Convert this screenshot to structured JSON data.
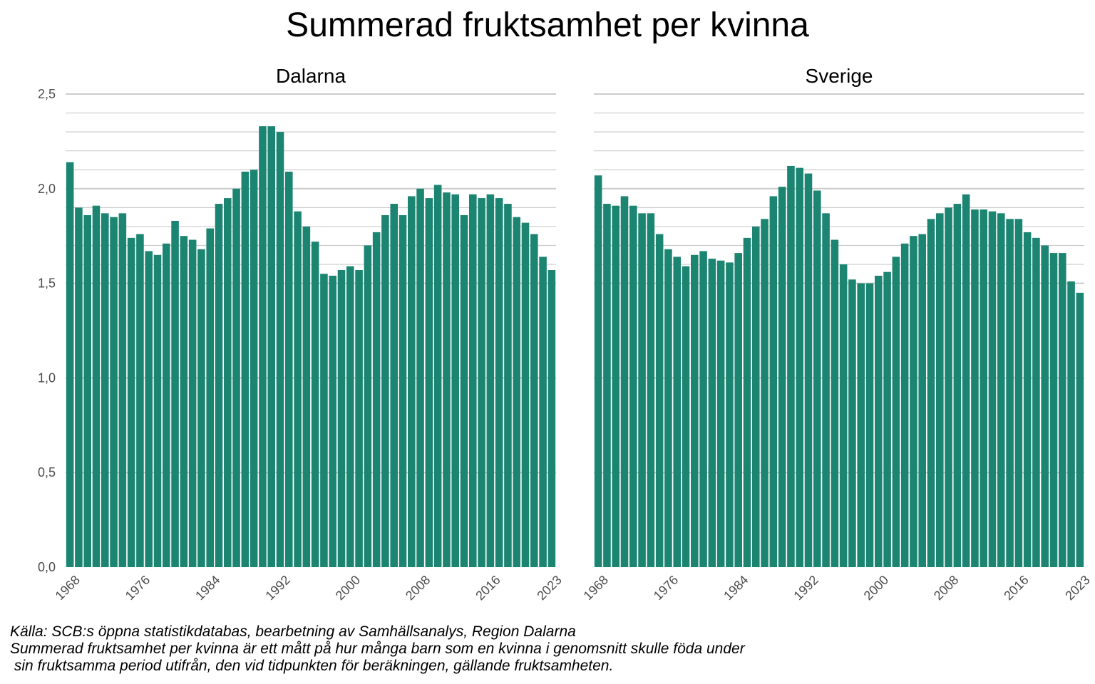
{
  "chart_data": {
    "type": "bar",
    "title": "Summerad fruktsamhet per kvinna",
    "ylim": [
      0,
      2.5
    ],
    "y_ticks": [
      "0,0",
      "0,5",
      "1,0",
      "1,5",
      "2,0",
      "2,5"
    ],
    "x_tick_labels": [
      "1968",
      "1976",
      "1984",
      "1992",
      "2000",
      "2008",
      "2016",
      "2023"
    ],
    "grid": true,
    "bar_color": "#1b8572",
    "years": [
      1968,
      1969,
      1970,
      1971,
      1972,
      1973,
      1974,
      1975,
      1976,
      1977,
      1978,
      1979,
      1980,
      1981,
      1982,
      1983,
      1984,
      1985,
      1986,
      1987,
      1988,
      1989,
      1990,
      1991,
      1992,
      1993,
      1994,
      1995,
      1996,
      1997,
      1998,
      1999,
      2000,
      2001,
      2002,
      2003,
      2004,
      2005,
      2006,
      2007,
      2008,
      2009,
      2010,
      2011,
      2012,
      2013,
      2014,
      2015,
      2016,
      2017,
      2018,
      2019,
      2020,
      2021,
      2022,
      2023
    ],
    "panels": [
      {
        "name": "Dalarna",
        "values": [
          2.14,
          1.9,
          1.86,
          1.91,
          1.87,
          1.85,
          1.87,
          1.74,
          1.76,
          1.67,
          1.65,
          1.71,
          1.83,
          1.75,
          1.73,
          1.68,
          1.79,
          1.92,
          1.95,
          2.0,
          2.09,
          2.1,
          2.33,
          2.33,
          2.3,
          2.09,
          1.88,
          1.8,
          1.72,
          1.55,
          1.54,
          1.57,
          1.59,
          1.57,
          1.7,
          1.77,
          1.86,
          1.92,
          1.86,
          1.96,
          2.0,
          1.95,
          2.02,
          1.98,
          1.97,
          1.86,
          1.97,
          1.95,
          1.97,
          1.95,
          1.92,
          1.85,
          1.82,
          1.76,
          1.64,
          1.57
        ]
      },
      {
        "name": "Sverige",
        "values": [
          2.07,
          1.92,
          1.91,
          1.96,
          1.91,
          1.87,
          1.87,
          1.76,
          1.68,
          1.64,
          1.59,
          1.65,
          1.67,
          1.63,
          1.62,
          1.61,
          1.66,
          1.74,
          1.8,
          1.84,
          1.96,
          2.01,
          2.12,
          2.11,
          2.08,
          1.99,
          1.87,
          1.73,
          1.6,
          1.52,
          1.5,
          1.5,
          1.54,
          1.56,
          1.64,
          1.71,
          1.75,
          1.76,
          1.84,
          1.87,
          1.9,
          1.92,
          1.97,
          1.89,
          1.89,
          1.88,
          1.87,
          1.84,
          1.84,
          1.77,
          1.74,
          1.7,
          1.66,
          1.66,
          1.51,
          1.45
        ]
      }
    ]
  },
  "caption": {
    "line1": "Källa: SCB:s öppna statistikdatabas, bearbetning av Samhällsanalys, Region Dalarna",
    "line2": "Summerad fruktsamhet per kvinna är ett mått på hur många barn som en kvinna i genomsnitt skulle föda under",
    "line3": " sin fruktsamma period utifrån, den vid tidpunkten för beräkningen, gällande fruktsamheten."
  }
}
